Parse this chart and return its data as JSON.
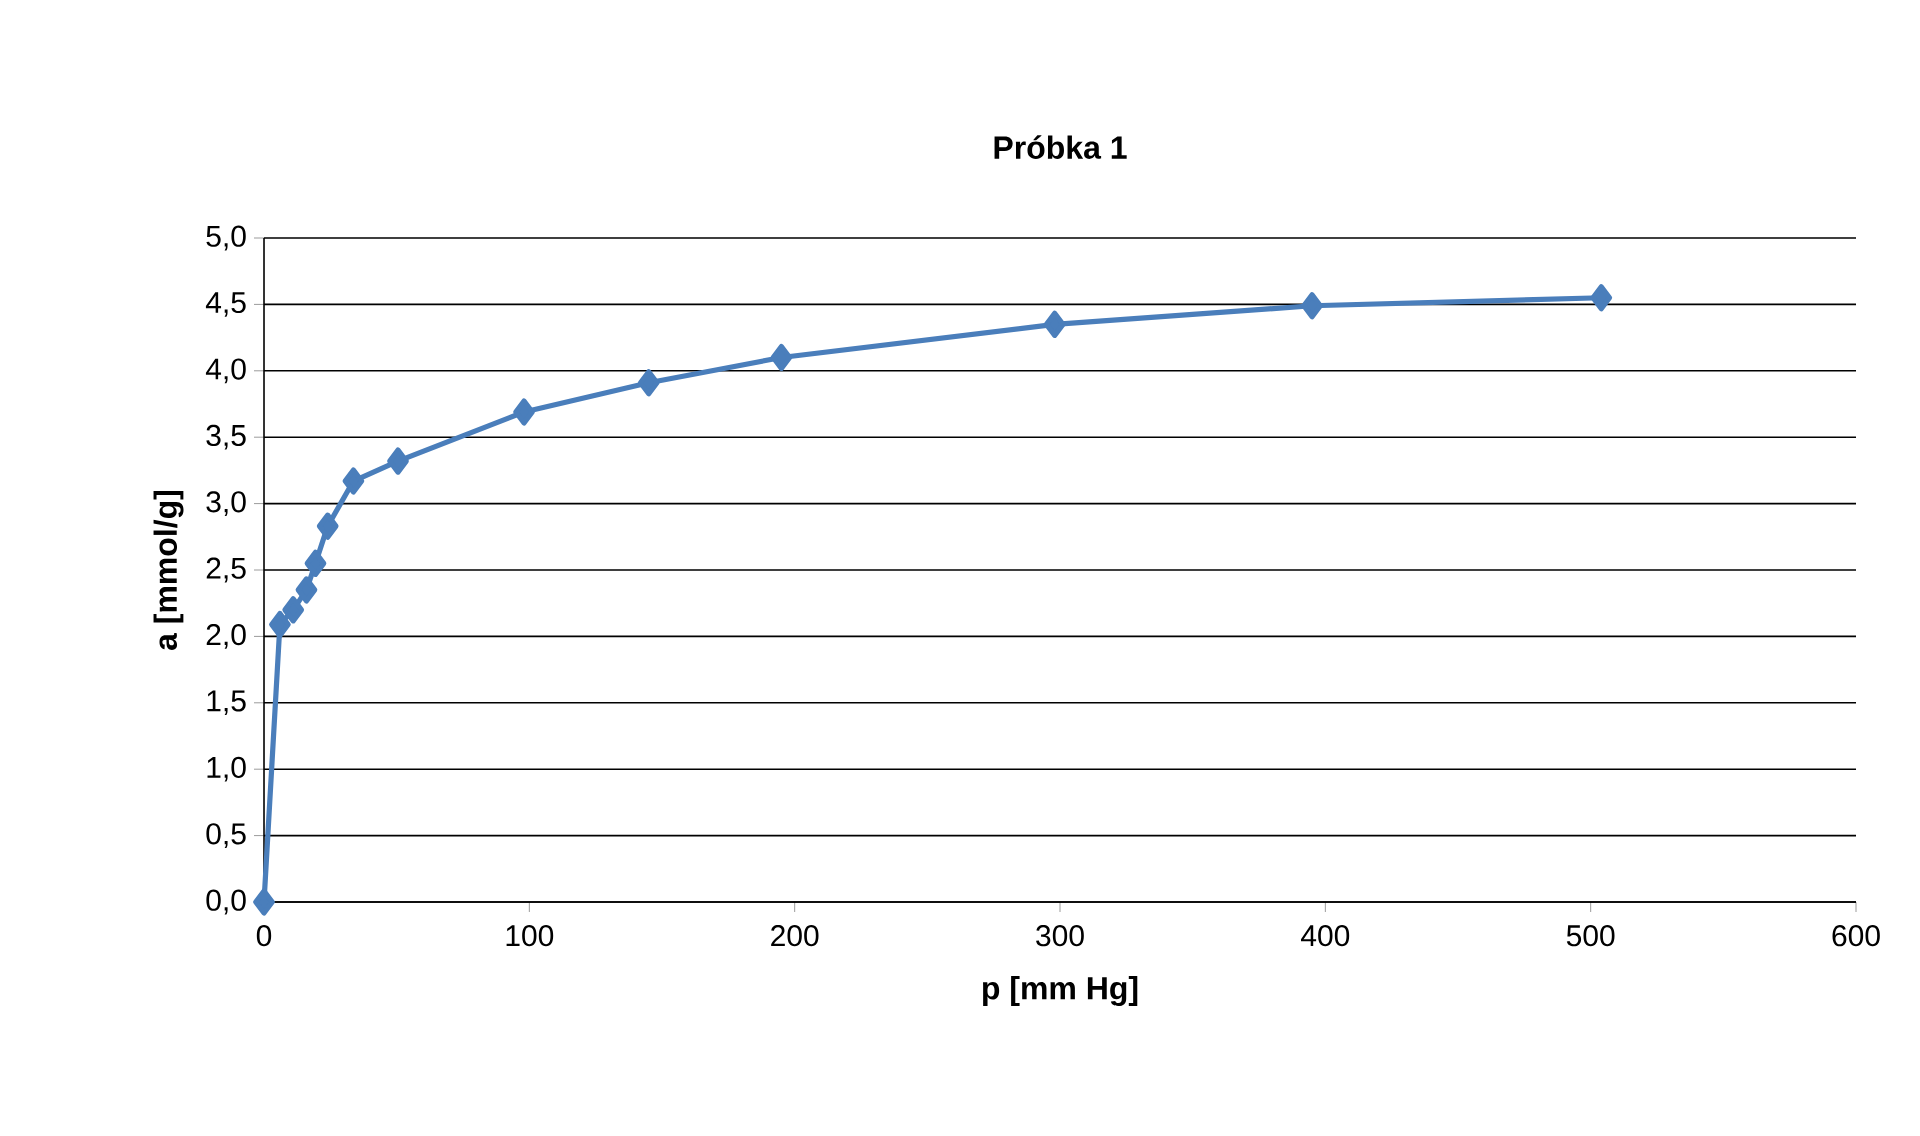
{
  "chart_data": {
    "type": "line",
    "title": "Próbka 1",
    "xlabel": "p [mm Hg]",
    "ylabel": "a [mmol/g]",
    "x": [
      0,
      6,
      11,
      16,
      19.4,
      24,
      33.7,
      50.5,
      98,
      145,
      195,
      298,
      395,
      504
    ],
    "series": [
      {
        "color": "#4a7ebb",
        "values": [
          0,
          2.09,
          2.2,
          2.35,
          2.55,
          2.83,
          3.17,
          3.32,
          3.69,
          3.91,
          4.1,
          4.35,
          4.49,
          4.55
        ]
      }
    ],
    "xlim": [
      0,
      600
    ],
    "xticks": [
      0,
      100,
      200,
      300,
      400,
      500,
      600
    ],
    "ylim": [
      0,
      5
    ],
    "yticks": [
      {
        "value": 0,
        "label": "0,0"
      },
      {
        "value": 0.5,
        "label": "0,5"
      },
      {
        "value": 1,
        "label": "1,0"
      },
      {
        "value": 1.5,
        "label": "1,5"
      },
      {
        "value": 2,
        "label": "2,0"
      },
      {
        "value": 2.5,
        "label": "2,5"
      },
      {
        "value": 3,
        "label": "3,0"
      },
      {
        "value": 3.5,
        "label": "3,5"
      },
      {
        "value": 4,
        "label": "4,0"
      },
      {
        "value": 4.5,
        "label": "4,5"
      },
      {
        "value": 5,
        "label": "5,0"
      }
    ],
    "grid": "y",
    "marker": "diamond",
    "line_style": "solid",
    "legend": false
  }
}
